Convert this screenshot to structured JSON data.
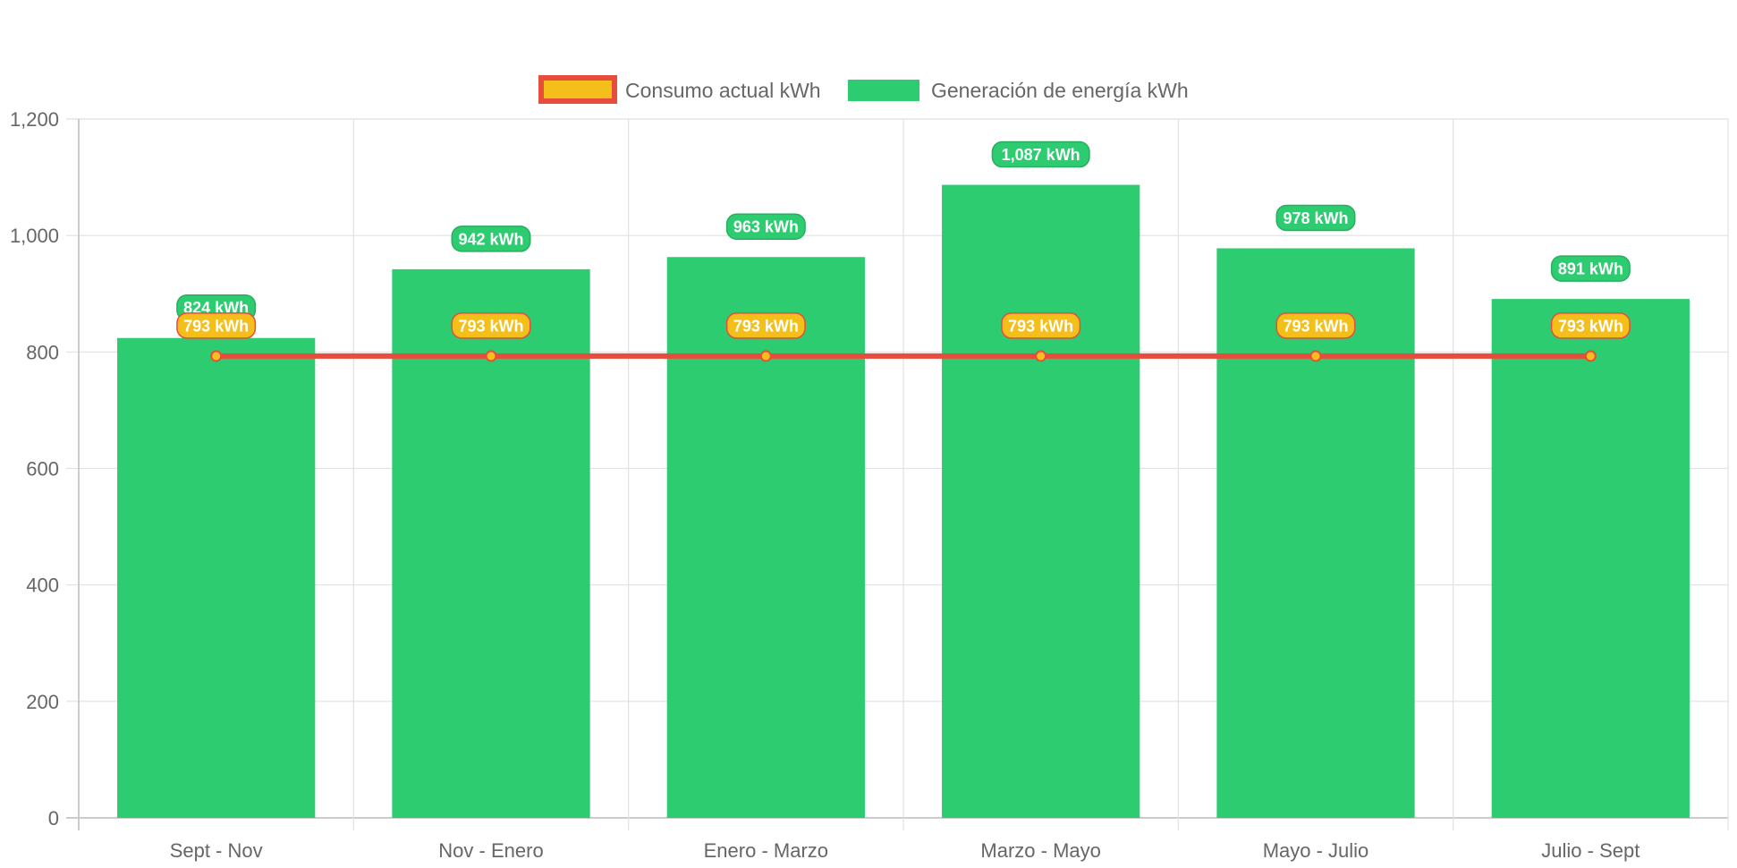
{
  "chart_data": {
    "type": "bar",
    "categories": [
      "Sept - Nov",
      "Nov - Enero",
      "Enero - Marzo",
      "Marzo - Mayo",
      "Mayo - Julio",
      "Julio - Sept"
    ],
    "series": [
      {
        "name": "Consumo actual kWh",
        "type": "line",
        "values": [
          793,
          793,
          793,
          793,
          793,
          793
        ],
        "labels": [
          "793 kWh",
          "793 kWh",
          "793 kWh",
          "793 kWh",
          "793 kWh",
          "793 kWh"
        ],
        "fill_color": "#f5bf1b",
        "line_color": "#e74c3c"
      },
      {
        "name": "Generación de energía kWh",
        "type": "bar",
        "values": [
          824,
          942,
          963,
          1087,
          978,
          891
        ],
        "labels": [
          "824 kWh",
          "942 kWh",
          "963 kWh",
          "1,087 kWh",
          "978 kWh",
          "891 kWh"
        ],
        "color": "#2ecc71",
        "label_border_color": "#27ae60"
      }
    ],
    "yticks": [
      "0",
      "200",
      "400",
      "600",
      "800",
      "1,000",
      "1,200"
    ],
    "ylim": [
      0,
      1200
    ],
    "grid": true,
    "legend_position": "top-center",
    "title": "",
    "xlabel": "",
    "ylabel": ""
  }
}
